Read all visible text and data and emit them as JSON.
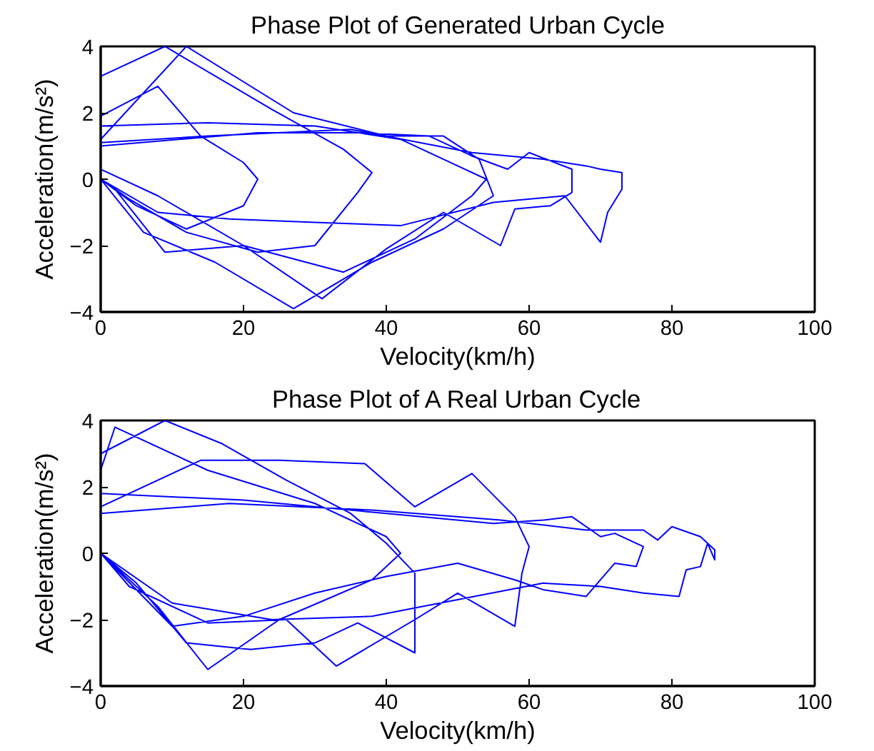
{
  "chart_data": [
    {
      "type": "line",
      "title": "Phase Plot of Generated Urban Cycle",
      "xlabel": "Velocity(km/h)",
      "ylabel": "Acceleration(m/s²)",
      "xlim": [
        0,
        100
      ],
      "ylim": [
        -4,
        4
      ],
      "xticks": [
        0,
        20,
        40,
        60,
        80,
        100
      ],
      "yticks": [
        -4,
        -2,
        0,
        2,
        4
      ],
      "grid": false,
      "marker": "none",
      "line_style": "solid",
      "series": [
        {
          "color": "#0000ff",
          "x": [
            0,
            8,
            14,
            20,
            22,
            20,
            12,
            5,
            0,
            0,
            9,
            24,
            34,
            38,
            36,
            30,
            22,
            12,
            4,
            0,
            0,
            15,
            30,
            42,
            50,
            54,
            52,
            44,
            34,
            20,
            9,
            2,
            0,
            0,
            12,
            27,
            40,
            48,
            53,
            55,
            48,
            38,
            27,
            16,
            6,
            0,
            0,
            22,
            36,
            46,
            52,
            57,
            60,
            66,
            66,
            63,
            58,
            56,
            48,
            40,
            31,
            20,
            8,
            0,
            0,
            15,
            35,
            52,
            62,
            68,
            70,
            73,
            73,
            71,
            70,
            65,
            55,
            42,
            30,
            18,
            8,
            0
          ],
          "values": [
            1.9,
            2.8,
            1.3,
            0.5,
            0,
            -0.8,
            -1.5,
            -0.8,
            0,
            3.1,
            4,
            2.1,
            0.9,
            0.2,
            -0.4,
            -2.0,
            -2.2,
            -1.6,
            -0.6,
            0,
            1.6,
            1.7,
            1.6,
            1.2,
            0.4,
            0,
            -0.5,
            -1.8,
            -2.8,
            -2.0,
            -2.2,
            -0.3,
            0,
            1.2,
            4,
            2.0,
            1.3,
            1.3,
            0.6,
            -0.5,
            -1.5,
            -2.5,
            -3.9,
            -2.5,
            -1.6,
            0,
            1.0,
            1.4,
            1.4,
            1.3,
            0.7,
            0.3,
            0.8,
            0.3,
            -0.4,
            -0.8,
            -0.9,
            -2.0,
            -1.0,
            -2.1,
            -3.6,
            -2.0,
            -0.5,
            0.3,
            1.1,
            1.3,
            1.5,
            0.8,
            0.6,
            0.4,
            0.3,
            0.2,
            -0.3,
            -1.0,
            -1.9,
            -0.5,
            -0.7,
            -1.4,
            -1.3,
            -1.2,
            -1.0,
            0
          ]
        }
      ]
    },
    {
      "type": "line",
      "title": "Phase Plot of A Real Urban Cycle",
      "xlabel": "Velocity(km/h)",
      "ylabel": "Acceleration(m/s²)",
      "xlim": [
        0,
        100
      ],
      "ylim": [
        -4,
        4
      ],
      "xticks": [
        0,
        20,
        40,
        60,
        80,
        100
      ],
      "yticks": [
        -4,
        -2,
        0,
        2,
        4
      ],
      "grid": false,
      "marker": "none",
      "line_style": "solid",
      "series": [
        {
          "color": "#0000ff",
          "x": [
            0,
            2,
            15,
            30,
            40,
            42,
            38,
            25,
            15,
            8,
            0,
            0,
            9,
            17,
            26,
            35,
            40,
            44,
            44,
            36,
            30,
            21,
            12,
            5,
            0,
            0,
            14,
            25,
            37,
            44,
            52,
            58,
            60,
            59,
            58,
            50,
            44,
            33,
            26,
            15,
            4,
            0,
            0,
            20,
            40,
            55,
            62,
            66,
            70,
            72,
            76,
            75,
            72,
            68,
            62,
            58,
            50,
            40,
            30,
            20,
            10,
            0,
            0,
            18,
            38,
            56,
            68,
            76,
            78,
            80,
            84,
            86,
            86,
            85,
            84,
            82,
            81,
            76,
            70,
            62,
            50,
            38,
            24,
            10,
            0
          ],
          "values": [
            2.5,
            3.8,
            2.5,
            1.5,
            0.5,
            0,
            -0.8,
            -2.0,
            -3.5,
            -1.6,
            0,
            3.0,
            4,
            3.3,
            2.2,
            1.2,
            0.3,
            -0.6,
            -3.0,
            -2.1,
            -2.7,
            -2.9,
            -2.7,
            -0.9,
            0,
            1.4,
            2.8,
            2.8,
            2.7,
            1.4,
            2.4,
            1.1,
            0.2,
            -0.6,
            -2.2,
            -1.2,
            -2.0,
            -3.4,
            -2.0,
            -2.1,
            -1.0,
            0,
            1.8,
            1.6,
            1.2,
            0.9,
            1.0,
            1.1,
            0.5,
            0.6,
            0.2,
            -0.4,
            -0.3,
            -1.3,
            -1.1,
            -0.8,
            -0.3,
            -0.7,
            -1.2,
            -1.9,
            -2.2,
            0,
            1.2,
            1.5,
            1.3,
            1.0,
            0.7,
            0.7,
            0.4,
            0.8,
            0.5,
            0.1,
            -0.2,
            0.3,
            -0.4,
            -0.5,
            -1.3,
            -1.2,
            -1.0,
            -0.9,
            -1.4,
            -1.9,
            -2.0,
            -1.5,
            0
          ]
        }
      ]
    }
  ]
}
